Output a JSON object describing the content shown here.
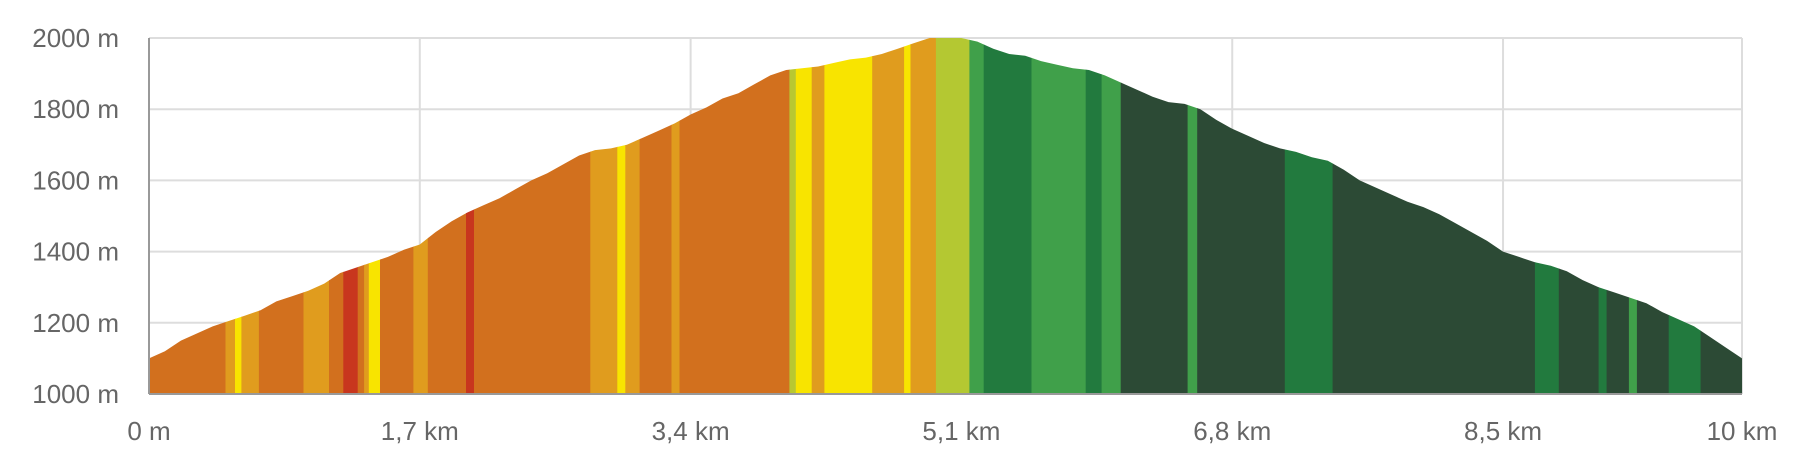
{
  "chart_data": {
    "type": "area",
    "title": "",
    "xlabel": "",
    "ylabel": "",
    "x_unit": "km",
    "y_unit": "m",
    "xlim": [
      0,
      10
    ],
    "ylim": [
      1000,
      2000
    ],
    "grid": true,
    "x_ticks": [
      {
        "value": 0,
        "label": "0 m"
      },
      {
        "value": 1.7,
        "label": "1,7 km"
      },
      {
        "value": 3.4,
        "label": "3,4 km"
      },
      {
        "value": 5.1,
        "label": "5,1 km"
      },
      {
        "value": 6.8,
        "label": "6,8 km"
      },
      {
        "value": 8.5,
        "label": "8,5 km"
      },
      {
        "value": 10,
        "label": "10 km"
      }
    ],
    "y_ticks": [
      {
        "value": 1000,
        "label": "1000 m"
      },
      {
        "value": 1200,
        "label": "1200 m"
      },
      {
        "value": 1400,
        "label": "1400 m"
      },
      {
        "value": 1600,
        "label": "1600 m"
      },
      {
        "value": 1800,
        "label": "1800 m"
      },
      {
        "value": 2000,
        "label": "2000 m"
      }
    ],
    "profile": [
      [
        0,
        1100
      ],
      [
        0.1,
        1120
      ],
      [
        0.2,
        1150
      ],
      [
        0.3,
        1170
      ],
      [
        0.4,
        1190
      ],
      [
        0.5,
        1205
      ],
      [
        0.6,
        1220
      ],
      [
        0.7,
        1235
      ],
      [
        0.8,
        1260
      ],
      [
        0.9,
        1275
      ],
      [
        1.0,
        1290
      ],
      [
        1.1,
        1310
      ],
      [
        1.2,
        1340
      ],
      [
        1.3,
        1355
      ],
      [
        1.4,
        1370
      ],
      [
        1.5,
        1385
      ],
      [
        1.6,
        1405
      ],
      [
        1.7,
        1420
      ],
      [
        1.8,
        1455
      ],
      [
        1.9,
        1485
      ],
      [
        2.0,
        1510
      ],
      [
        2.1,
        1530
      ],
      [
        2.2,
        1550
      ],
      [
        2.3,
        1575
      ],
      [
        2.4,
        1600
      ],
      [
        2.5,
        1620
      ],
      [
        2.6,
        1645
      ],
      [
        2.7,
        1670
      ],
      [
        2.8,
        1685
      ],
      [
        2.9,
        1690
      ],
      [
        3.0,
        1700
      ],
      [
        3.1,
        1720
      ],
      [
        3.2,
        1740
      ],
      [
        3.3,
        1760
      ],
      [
        3.4,
        1785
      ],
      [
        3.5,
        1805
      ],
      [
        3.6,
        1830
      ],
      [
        3.7,
        1845
      ],
      [
        3.8,
        1870
      ],
      [
        3.9,
        1895
      ],
      [
        4.0,
        1910
      ],
      [
        4.1,
        1915
      ],
      [
        4.2,
        1920
      ],
      [
        4.3,
        1930
      ],
      [
        4.4,
        1940
      ],
      [
        4.5,
        1945
      ],
      [
        4.6,
        1955
      ],
      [
        4.7,
        1970
      ],
      [
        4.8,
        1985
      ],
      [
        4.9,
        2000
      ],
      [
        5.0,
        2000
      ],
      [
        5.1,
        2000
      ],
      [
        5.2,
        1990
      ],
      [
        5.3,
        1970
      ],
      [
        5.4,
        1955
      ],
      [
        5.5,
        1950
      ],
      [
        5.6,
        1935
      ],
      [
        5.7,
        1925
      ],
      [
        5.8,
        1915
      ],
      [
        5.9,
        1910
      ],
      [
        6.0,
        1895
      ],
      [
        6.1,
        1875
      ],
      [
        6.2,
        1855
      ],
      [
        6.3,
        1835
      ],
      [
        6.4,
        1820
      ],
      [
        6.5,
        1815
      ],
      [
        6.6,
        1800
      ],
      [
        6.7,
        1770
      ],
      [
        6.8,
        1745
      ],
      [
        6.9,
        1725
      ],
      [
        7.0,
        1705
      ],
      [
        7.1,
        1690
      ],
      [
        7.2,
        1680
      ],
      [
        7.3,
        1665
      ],
      [
        7.4,
        1655
      ],
      [
        7.5,
        1630
      ],
      [
        7.6,
        1600
      ],
      [
        7.7,
        1580
      ],
      [
        7.8,
        1560
      ],
      [
        7.9,
        1540
      ],
      [
        8.0,
        1525
      ],
      [
        8.1,
        1505
      ],
      [
        8.2,
        1480
      ],
      [
        8.3,
        1455
      ],
      [
        8.4,
        1430
      ],
      [
        8.5,
        1400
      ],
      [
        8.6,
        1385
      ],
      [
        8.7,
        1370
      ],
      [
        8.8,
        1360
      ],
      [
        8.9,
        1345
      ],
      [
        9.0,
        1320
      ],
      [
        9.1,
        1300
      ],
      [
        9.2,
        1285
      ],
      [
        9.3,
        1270
      ],
      [
        9.4,
        1255
      ],
      [
        9.5,
        1230
      ],
      [
        9.6,
        1210
      ],
      [
        9.7,
        1190
      ],
      [
        9.8,
        1160
      ],
      [
        9.9,
        1130
      ],
      [
        10.0,
        1100
      ]
    ],
    "segments": [
      {
        "x0": 0.0,
        "x1": 0.48,
        "color": "#d2701e"
      },
      {
        "x0": 0.48,
        "x1": 0.54,
        "color": "#e09c1e"
      },
      {
        "x0": 0.54,
        "x1": 0.58,
        "color": "#f8e400"
      },
      {
        "x0": 0.58,
        "x1": 0.69,
        "color": "#e09c1e"
      },
      {
        "x0": 0.69,
        "x1": 0.97,
        "color": "#d2701e"
      },
      {
        "x0": 0.97,
        "x1": 1.13,
        "color": "#e09c1e"
      },
      {
        "x0": 1.13,
        "x1": 1.22,
        "color": "#d2701e"
      },
      {
        "x0": 1.22,
        "x1": 1.31,
        "color": "#c8361e"
      },
      {
        "x0": 1.31,
        "x1": 1.35,
        "color": "#d2701e"
      },
      {
        "x0": 1.35,
        "x1": 1.38,
        "color": "#e09c1e"
      },
      {
        "x0": 1.38,
        "x1": 1.45,
        "color": "#f8e400"
      },
      {
        "x0": 1.45,
        "x1": 1.66,
        "color": "#d2701e"
      },
      {
        "x0": 1.66,
        "x1": 1.75,
        "color": "#e09c1e"
      },
      {
        "x0": 1.75,
        "x1": 1.99,
        "color": "#d2701e"
      },
      {
        "x0": 1.99,
        "x1": 2.04,
        "color": "#c8361e"
      },
      {
        "x0": 2.04,
        "x1": 2.77,
        "color": "#d2701e"
      },
      {
        "x0": 2.77,
        "x1": 2.94,
        "color": "#e09c1e"
      },
      {
        "x0": 2.94,
        "x1": 2.99,
        "color": "#f8e400"
      },
      {
        "x0": 2.99,
        "x1": 3.08,
        "color": "#e09c1e"
      },
      {
        "x0": 3.08,
        "x1": 3.28,
        "color": "#d2701e"
      },
      {
        "x0": 3.28,
        "x1": 3.33,
        "color": "#e09c1e"
      },
      {
        "x0": 3.33,
        "x1": 4.02,
        "color": "#d2701e"
      },
      {
        "x0": 4.02,
        "x1": 4.06,
        "color": "#b8c832"
      },
      {
        "x0": 4.06,
        "x1": 4.16,
        "color": "#f8e400"
      },
      {
        "x0": 4.16,
        "x1": 4.24,
        "color": "#e09c1e"
      },
      {
        "x0": 4.24,
        "x1": 4.54,
        "color": "#f8e400"
      },
      {
        "x0": 4.54,
        "x1": 4.74,
        "color": "#e09c1e"
      },
      {
        "x0": 4.74,
        "x1": 4.78,
        "color": "#f8e400"
      },
      {
        "x0": 4.78,
        "x1": 4.94,
        "color": "#e09c1e"
      },
      {
        "x0": 4.94,
        "x1": 5.15,
        "color": "#b4c832"
      },
      {
        "x0": 5.15,
        "x1": 5.24,
        "color": "#40a04a"
      },
      {
        "x0": 5.24,
        "x1": 5.54,
        "color": "#227a3e"
      },
      {
        "x0": 5.54,
        "x1": 5.88,
        "color": "#40a04a"
      },
      {
        "x0": 5.88,
        "x1": 5.98,
        "color": "#227a3e"
      },
      {
        "x0": 5.98,
        "x1": 6.1,
        "color": "#40a04a"
      },
      {
        "x0": 6.1,
        "x1": 6.52,
        "color": "#2c4a35"
      },
      {
        "x0": 6.52,
        "x1": 6.58,
        "color": "#40a04a"
      },
      {
        "x0": 6.58,
        "x1": 7.13,
        "color": "#2c4a35"
      },
      {
        "x0": 7.13,
        "x1": 7.43,
        "color": "#227a3e"
      },
      {
        "x0": 7.43,
        "x1": 8.7,
        "color": "#2c4a35"
      },
      {
        "x0": 8.7,
        "x1": 8.85,
        "color": "#227a3e"
      },
      {
        "x0": 8.85,
        "x1": 9.1,
        "color": "#2c4a35"
      },
      {
        "x0": 9.1,
        "x1": 9.15,
        "color": "#227a3e"
      },
      {
        "x0": 9.15,
        "x1": 9.29,
        "color": "#2c4a35"
      },
      {
        "x0": 9.29,
        "x1": 9.34,
        "color": "#40a04a"
      },
      {
        "x0": 9.34,
        "x1": 9.54,
        "color": "#2c4a35"
      },
      {
        "x0": 9.54,
        "x1": 9.74,
        "color": "#227a3e"
      },
      {
        "x0": 9.74,
        "x1": 10.0,
        "color": "#2c4a35"
      }
    ]
  }
}
